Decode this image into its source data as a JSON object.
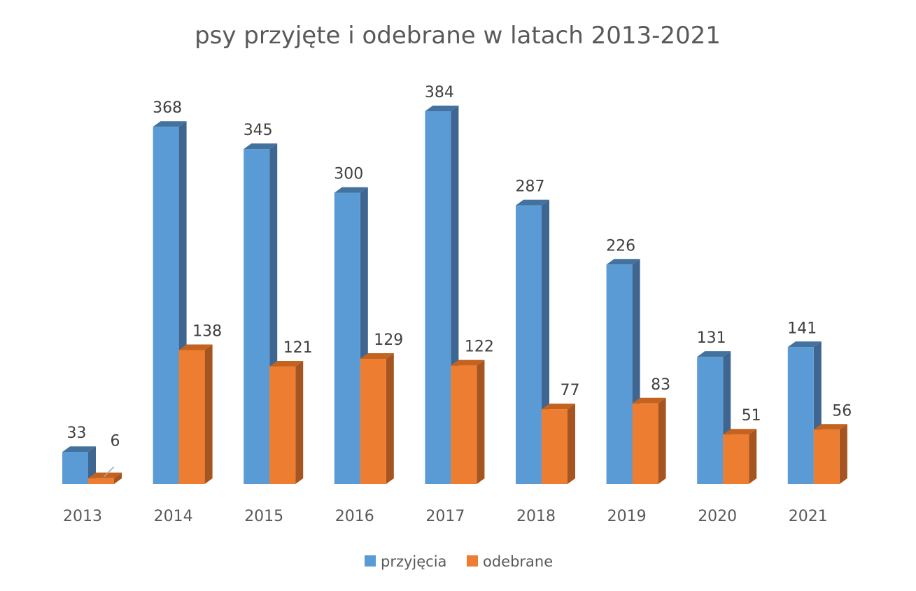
{
  "chart_data": {
    "type": "bar",
    "title": "psy przyjęte i odebrane w latach 2013-2021",
    "categories": [
      "2013",
      "2014",
      "2015",
      "2016",
      "2017",
      "2018",
      "2019",
      "2020",
      "2021"
    ],
    "series": [
      {
        "name": "przyjęcia",
        "values": [
          33,
          368,
          345,
          300,
          384,
          287,
          226,
          131,
          141
        ],
        "color": "#5b9bd5",
        "side_color": "#3e6690",
        "top_color": "#44729f"
      },
      {
        "name": "odebrane",
        "values": [
          6,
          138,
          121,
          129,
          122,
          77,
          83,
          51,
          56
        ],
        "color": "#ed7d31",
        "side_color": "#a65420",
        "top_color": "#c4631f"
      }
    ],
    "xlabel": "",
    "ylabel": "",
    "ylim": [
      0,
      384
    ],
    "grid": false,
    "bar_style": "3d",
    "legend_position": "bottom"
  }
}
